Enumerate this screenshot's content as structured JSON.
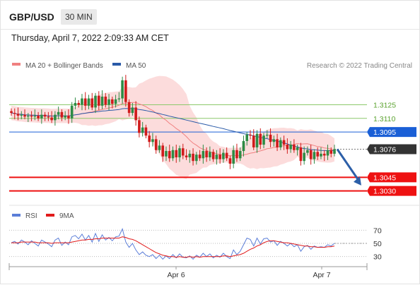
{
  "header": {
    "symbol": "GBP/USD",
    "timeframe": "30 MIN",
    "datetime": "Thursday, April 7, 2022 2:09:33 AM CET"
  },
  "price_legend": [
    {
      "label": "MA 20 + Bollinger Bands",
      "color": "#f08080"
    },
    {
      "label": "MA 50",
      "color": "#2a5aa8"
    }
  ],
  "credit": "Research © 2022 Trading Central",
  "rsi_legend": [
    {
      "label": "RSI",
      "color": "#5b7ed8"
    },
    {
      "label": "9MA",
      "color": "#e11b1b"
    }
  ],
  "colors": {
    "up_candle": "#2e8b45",
    "down_candle": "#d01b1b",
    "green_level": "#8cc86a",
    "blue_level": "#1a5fd6",
    "red_level": "#ee1111",
    "current_price": "#333333",
    "bollinger_fill": "#fbd6d6",
    "arrow": "#2c5fa8"
  },
  "chart_data": [
    {
      "type": "candlestick",
      "panel": "price",
      "ylim": [
        1.3018,
        1.3162
      ],
      "levels": [
        {
          "value": 1.3125,
          "label": "1.3125",
          "kind": "green"
        },
        {
          "value": 1.311,
          "label": "1.3110",
          "kind": "green"
        },
        {
          "value": 1.3095,
          "label": "1.3095",
          "kind": "blue"
        },
        {
          "value": 1.3076,
          "label": "1.3076",
          "kind": "current"
        },
        {
          "value": 1.3045,
          "label": "1.3045",
          "kind": "red"
        },
        {
          "value": 1.303,
          "label": "1.3030",
          "kind": "red"
        }
      ],
      "forecast_arrow": {
        "from": 1.3076,
        "to": 1.3036,
        "direction": "down"
      },
      "close": [
        1.3116,
        1.3115,
        1.3113,
        1.3114,
        1.3112,
        1.3113,
        1.3112,
        1.3113,
        1.311,
        1.3114,
        1.3112,
        1.3111,
        1.3108,
        1.3114,
        1.3117,
        1.3111,
        1.3113,
        1.311,
        1.3124,
        1.3127,
        1.3125,
        1.3132,
        1.3124,
        1.3132,
        1.3122,
        1.3135,
        1.3124,
        1.3134,
        1.3125,
        1.3131,
        1.3126,
        1.3131,
        1.3132,
        1.3152,
        1.3128,
        1.3116,
        1.3122,
        1.3108,
        1.3094,
        1.31,
        1.3091,
        1.3084,
        1.3087,
        1.3075,
        1.308,
        1.3068,
        1.3074,
        1.3066,
        1.3075,
        1.3067,
        1.3077,
        1.3069,
        1.3067,
        1.3071,
        1.3063,
        1.307,
        1.3066,
        1.3074,
        1.3067,
        1.3073,
        1.3065,
        1.307,
        1.3065,
        1.3072,
        1.3066,
        1.306,
        1.3075,
        1.3066,
        1.3074,
        1.3085,
        1.3092,
        1.3091,
        1.3078,
        1.3093,
        1.3081,
        1.3091,
        1.3092,
        1.3084,
        1.3087,
        1.3078,
        1.3086,
        1.3081,
        1.3076,
        1.3081,
        1.3075,
        1.3078,
        1.3063,
        1.3072,
        1.3075,
        1.3065,
        1.3073,
        1.3068,
        1.3071,
        1.3069,
        1.3075,
        1.3071,
        1.3076
      ]
    },
    {
      "type": "line",
      "panel": "rsi",
      "ylim": [
        20,
        80
      ],
      "yticks": [
        70,
        50,
        30
      ],
      "xticks": [
        "Apr 6",
        "Apr 7"
      ],
      "series": [
        {
          "name": "RSI",
          "values": [
            51,
            53,
            49,
            55,
            52,
            48,
            54,
            50,
            46,
            55,
            52,
            49,
            45,
            55,
            58,
            47,
            52,
            48,
            60,
            62,
            57,
            64,
            55,
            62,
            52,
            65,
            53,
            63,
            55,
            59,
            54,
            60,
            61,
            72,
            52,
            44,
            50,
            40,
            33,
            37,
            32,
            30,
            33,
            27,
            32,
            26,
            31,
            27,
            33,
            28,
            34,
            29,
            28,
            31,
            26,
            32,
            29,
            35,
            30,
            34,
            28,
            32,
            29,
            35,
            30,
            27,
            40,
            33,
            38,
            48,
            58,
            56,
            46,
            58,
            49,
            57,
            58,
            52,
            54,
            47,
            53,
            50,
            46,
            50,
            45,
            48,
            38,
            45,
            47,
            41,
            46,
            44,
            45,
            44,
            48,
            46,
            50
          ]
        },
        {
          "name": "9MA",
          "values": [
            51,
            51,
            51,
            52,
            52,
            52,
            52,
            52,
            51,
            51,
            51,
            51,
            50,
            51,
            51,
            51,
            51,
            51,
            52,
            53,
            54,
            55,
            55,
            56,
            56,
            57,
            57,
            58,
            58,
            58,
            58,
            58,
            58,
            60,
            59,
            57,
            56,
            54,
            51,
            48,
            45,
            42,
            39,
            36,
            34,
            32,
            31,
            30,
            30,
            29,
            30,
            29,
            29,
            30,
            29,
            30,
            29,
            30,
            30,
            30,
            30,
            30,
            30,
            31,
            31,
            30,
            31,
            32,
            33,
            35,
            38,
            41,
            43,
            46,
            48,
            51,
            53,
            54,
            54,
            53,
            52,
            51,
            51,
            50,
            49,
            48,
            47,
            46,
            46,
            45,
            45,
            44,
            44,
            44,
            45,
            45,
            46
          ]
        }
      ]
    }
  ]
}
